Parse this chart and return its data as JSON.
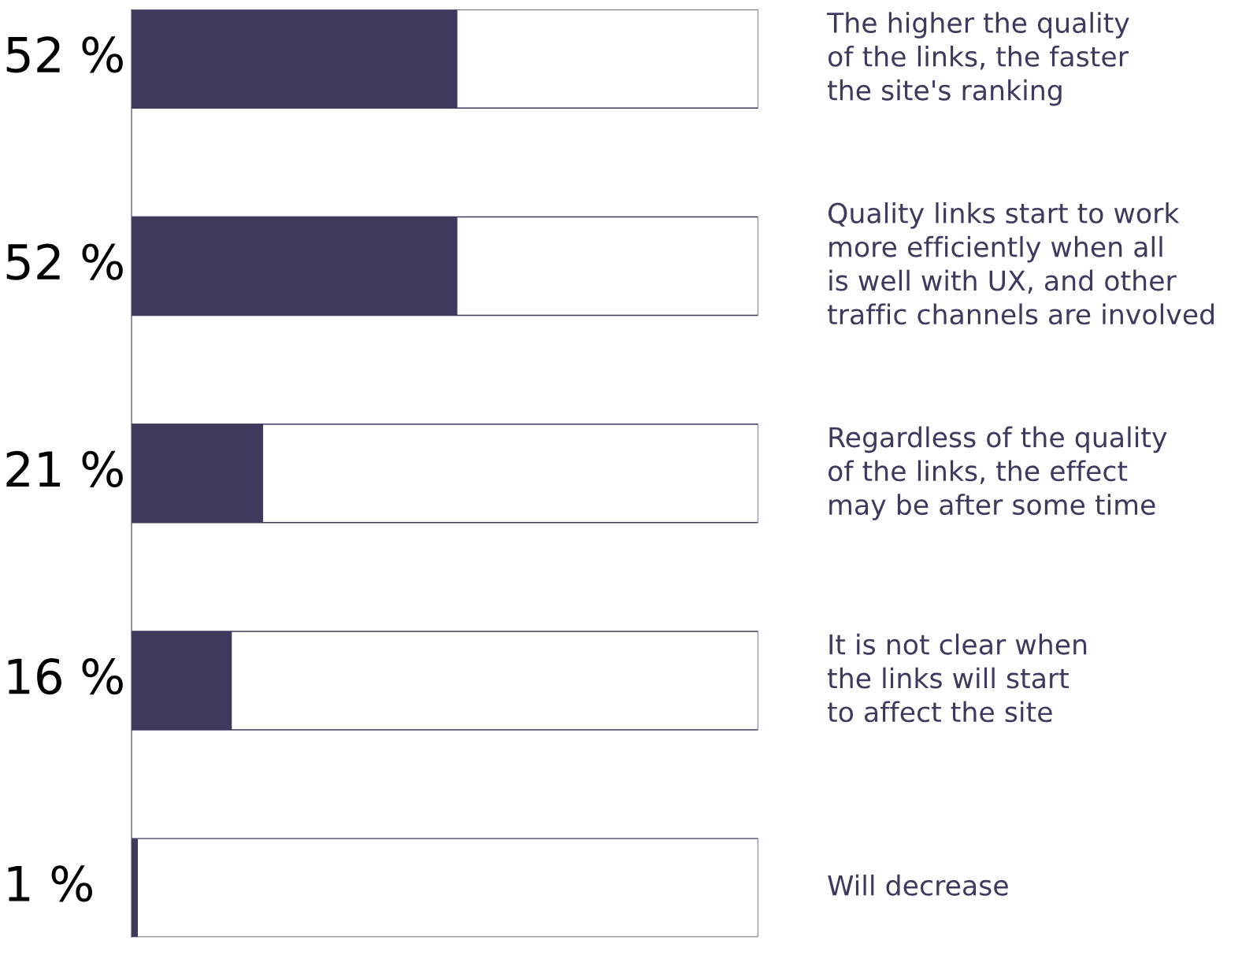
{
  "chart_data": {
    "type": "bar",
    "orientation": "horizontal",
    "categories": [
      "The higher the quality\nof the links, the faster\nthe site's ranking",
      "Quality links start to work\nmore efficiently when all\nis well with UX, and other\ntraffic channels are involved",
      "Regardless of the quality\nof the links, the effect\nmay be after some time",
      "It is not clear when\nthe links will start\nto affect the site",
      "Will decrease"
    ],
    "values": [
      52,
      52,
      21,
      16,
      1
    ],
    "value_labels": [
      "52 %",
      "52 %",
      "21 %",
      "16 %",
      "1 %"
    ],
    "color": "#41385e",
    "xlim": [
      0,
      100
    ]
  }
}
